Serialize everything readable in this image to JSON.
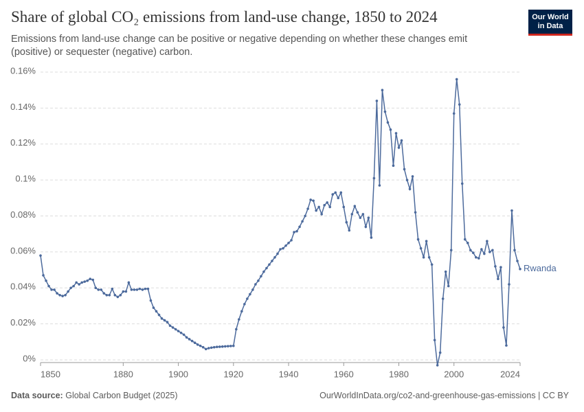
{
  "chart_data": {
    "type": "line",
    "title": "Share of global CO₂ emissions from land-use change, 1850 to 2024",
    "subtitle": "Emissions from land-use change can be positive or negative depending on whether these changes emit (positive) or sequester (negative) carbon.",
    "source_label": "Data source:",
    "source": "Global Carbon Budget (2025)",
    "url": "OurWorldInData.org/co2-and-greenhouse-gas-emissions | CC BY",
    "logo_lines": [
      "Our World",
      "in Data"
    ],
    "x": [
      1850,
      1851,
      1852,
      1853,
      1854,
      1855,
      1856,
      1857,
      1858,
      1859,
      1860,
      1861,
      1862,
      1863,
      1864,
      1865,
      1866,
      1867,
      1868,
      1869,
      1870,
      1871,
      1872,
      1873,
      1874,
      1875,
      1876,
      1877,
      1878,
      1879,
      1880,
      1881,
      1882,
      1883,
      1884,
      1885,
      1886,
      1887,
      1888,
      1889,
      1890,
      1891,
      1892,
      1893,
      1894,
      1895,
      1896,
      1897,
      1898,
      1899,
      1900,
      1901,
      1902,
      1903,
      1904,
      1905,
      1906,
      1907,
      1908,
      1909,
      1910,
      1911,
      1912,
      1913,
      1914,
      1915,
      1916,
      1917,
      1918,
      1919,
      1920,
      1921,
      1922,
      1923,
      1924,
      1925,
      1926,
      1927,
      1928,
      1929,
      1930,
      1931,
      1932,
      1933,
      1934,
      1935,
      1936,
      1937,
      1938,
      1939,
      1940,
      1941,
      1942,
      1943,
      1944,
      1945,
      1946,
      1947,
      1948,
      1949,
      1950,
      1951,
      1952,
      1953,
      1954,
      1955,
      1956,
      1957,
      1958,
      1959,
      1960,
      1961,
      1962,
      1963,
      1964,
      1965,
      1966,
      1967,
      1968,
      1969,
      1970,
      1971,
      1972,
      1973,
      1974,
      1975,
      1976,
      1977,
      1978,
      1979,
      1980,
      1981,
      1982,
      1983,
      1984,
      1985,
      1986,
      1987,
      1988,
      1989,
      1990,
      1991,
      1992,
      1993,
      1994,
      1995,
      1996,
      1997,
      1998,
      1999,
      2000,
      2001,
      2002,
      2003,
      2004,
      2005,
      2006,
      2007,
      2008,
      2009,
      2010,
      2011,
      2012,
      2013,
      2014,
      2015,
      2016,
      2017,
      2018,
      2019,
      2020,
      2021,
      2022,
      2023,
      2024
    ],
    "series": [
      {
        "name": "Rwanda",
        "color": "#4c6a9c",
        "values": [
          0.058,
          0.047,
          0.044,
          0.041,
          0.039,
          0.039,
          0.037,
          0.036,
          0.0355,
          0.036,
          0.038,
          0.04,
          0.041,
          0.043,
          0.042,
          0.043,
          0.0435,
          0.044,
          0.045,
          0.0445,
          0.04,
          0.039,
          0.039,
          0.037,
          0.036,
          0.036,
          0.0395,
          0.036,
          0.035,
          0.036,
          0.038,
          0.038,
          0.043,
          0.039,
          0.039,
          0.039,
          0.0395,
          0.039,
          0.0395,
          0.0395,
          0.033,
          0.029,
          0.027,
          0.025,
          0.023,
          0.022,
          0.021,
          0.019,
          0.018,
          0.017,
          0.016,
          0.015,
          0.014,
          0.0125,
          0.0115,
          0.0105,
          0.0095,
          0.0085,
          0.0078,
          0.007,
          0.006,
          0.0065,
          0.0068,
          0.007,
          0.0072,
          0.0073,
          0.0074,
          0.0075,
          0.0076,
          0.0077,
          0.0078,
          0.017,
          0.0225,
          0.027,
          0.031,
          0.034,
          0.0365,
          0.039,
          0.042,
          0.044,
          0.0465,
          0.049,
          0.051,
          0.053,
          0.055,
          0.057,
          0.059,
          0.0615,
          0.062,
          0.0635,
          0.065,
          0.0665,
          0.071,
          0.0715,
          0.074,
          0.077,
          0.08,
          0.084,
          0.089,
          0.0885,
          0.083,
          0.085,
          0.081,
          0.086,
          0.0875,
          0.085,
          0.092,
          0.093,
          0.09,
          0.093,
          0.085,
          0.0765,
          0.072,
          0.081,
          0.0855,
          0.082,
          0.079,
          0.081,
          0.074,
          0.079,
          0.068,
          0.101,
          0.144,
          0.097,
          0.15,
          0.138,
          0.132,
          0.128,
          0.108,
          0.126,
          0.118,
          0.122,
          0.106,
          0.1,
          0.095,
          0.102,
          0.082,
          0.067,
          0.062,
          0.057,
          0.066,
          0.057,
          0.053,
          0.011,
          -0.003,
          0.004,
          0.034,
          0.049,
          0.041,
          0.061,
          0.137,
          0.156,
          0.142,
          0.098,
          0.067,
          0.065,
          0.061,
          0.0595,
          0.057,
          0.0565,
          0.0615,
          0.059,
          0.066,
          0.06,
          0.061,
          0.052,
          0.045,
          0.0515,
          0.018,
          0.008,
          0.042,
          0.083,
          0.061,
          0.055,
          0.0505
        ]
      }
    ],
    "xlim": [
      1850,
      2024
    ],
    "xticks": [
      1850,
      1880,
      1900,
      1920,
      1940,
      1960,
      1980,
      2000,
      2024
    ],
    "ylim": [
      -0.0015,
      0.16
    ],
    "yticks": [
      {
        "value": 0,
        "label": "0%"
      },
      {
        "value": 0.02,
        "label": "0.02%"
      },
      {
        "value": 0.04,
        "label": "0.04%"
      },
      {
        "value": 0.06,
        "label": "0.06%"
      },
      {
        "value": 0.08,
        "label": "0.08%"
      },
      {
        "value": 0.1,
        "label": "0.1%"
      },
      {
        "value": 0.12,
        "label": "0.12%"
      },
      {
        "value": 0.14,
        "label": "0.14%"
      },
      {
        "value": 0.16,
        "label": "0.16%"
      }
    ],
    "grid": true
  }
}
